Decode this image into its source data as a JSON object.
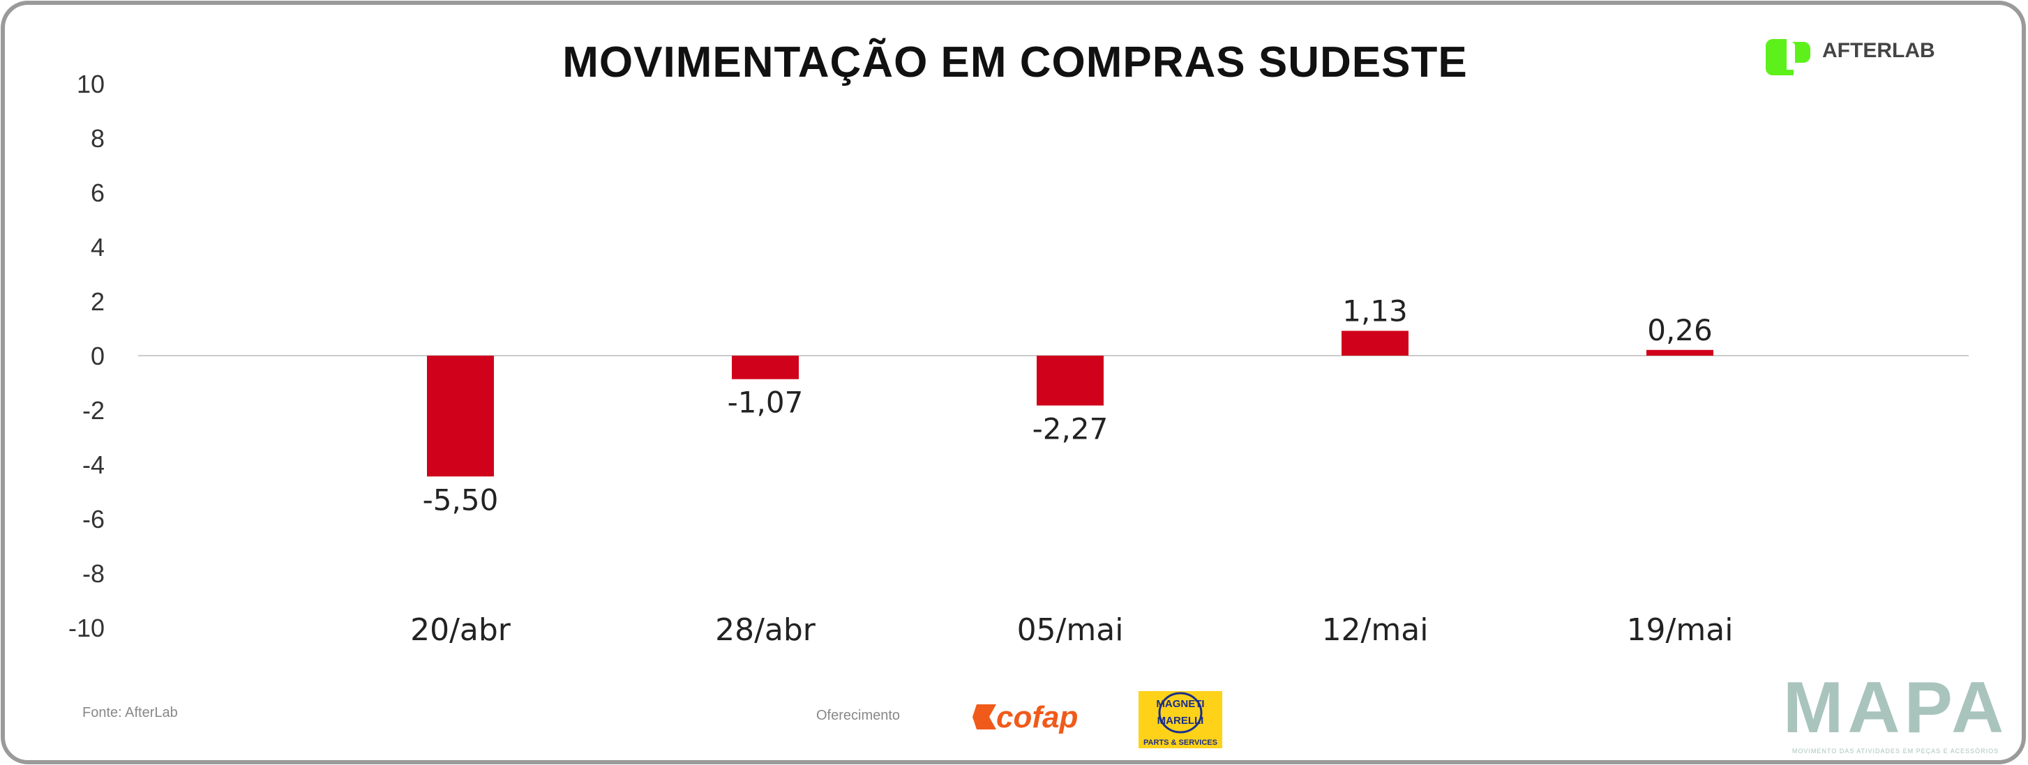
{
  "chart_data": {
    "type": "bar",
    "title": "MOVIMENTAÇÃO EM COMPRAS SUDESTE",
    "categories": [
      "20/abr",
      "28/abr",
      "05/mai",
      "12/mai",
      "19/mai"
    ],
    "values": [
      -5.5,
      -1.07,
      -2.27,
      1.13,
      0.26
    ],
    "value_labels": [
      "-5,50",
      "-1,07",
      "-2,27",
      "1,13",
      "0,26"
    ],
    "ylim": [
      -10,
      10
    ],
    "yticks": [
      10,
      8,
      6,
      4,
      2,
      0,
      -2,
      -4,
      -6,
      -8,
      -10
    ],
    "xlabel": "",
    "ylabel": "",
    "grid": false,
    "bar_color": "#d0021b"
  },
  "footer": {
    "source": "Fonte: AfterLab",
    "sponsor_label": "Oferecimento"
  },
  "logos": {
    "afterlab": "AFTERLAB",
    "cofap": "cofap",
    "magneti_top": "MAGNETI",
    "magneti_bottom": "MARELLI",
    "magneti_sub": "PARTS & SERVICES",
    "mapa": "MAPA",
    "mapa_sub": "MOVIMENTO DAS ATIVIDADES EM PEÇAS E ACESSÓRIOS"
  },
  "colors": {
    "afterlab_green": "#5ef01a",
    "mapa": "#a9c4bd",
    "cofap": "#f05a1a",
    "magneti_bg": "#ffd21a",
    "magneti_text": "#1a2f8a"
  }
}
